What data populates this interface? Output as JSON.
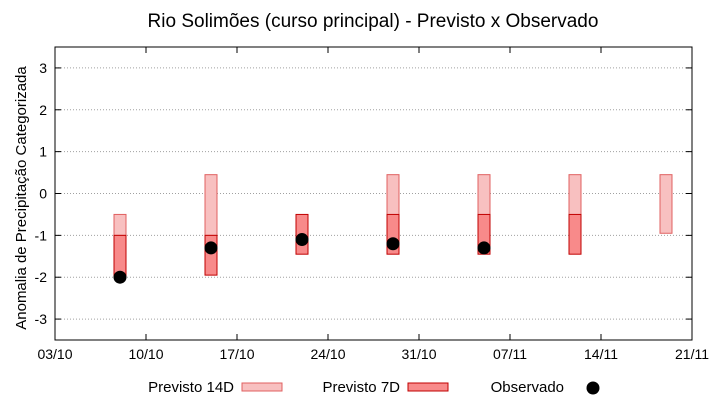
{
  "chart_data": {
    "type": "range-bar",
    "title": "Rio Solimões (curso principal) - Previsto x Observado",
    "ylabel": "Anomalia de Precipitação Categorizada",
    "xlabel": "",
    "ylim": [
      -3.5,
      3.5
    ],
    "yticks": [
      -3,
      -2,
      -1,
      0,
      1,
      2,
      3
    ],
    "xlim": [
      "2024-10-03",
      "2024-11-21"
    ],
    "xticks": [
      {
        "date": "2024-10-03",
        "label": "03/10"
      },
      {
        "date": "2024-10-10",
        "label": "10/10"
      },
      {
        "date": "2024-10-17",
        "label": "17/10"
      },
      {
        "date": "2024-10-24",
        "label": "24/10"
      },
      {
        "date": "2024-10-31",
        "label": "31/10"
      },
      {
        "date": "2024-11-07",
        "label": "07/11"
      },
      {
        "date": "2024-11-14",
        "label": "14/11"
      },
      {
        "date": "2024-11-21",
        "label": "21/11"
      }
    ],
    "grid": "y-dotted",
    "legend_position": "bottom",
    "series": [
      {
        "name": "Previsto 14D",
        "color": "#f8c0c0",
        "edge": "#e06060",
        "points": [
          {
            "x": "2024-10-08",
            "low": -1.0,
            "high": -0.5
          },
          {
            "x": "2024-10-15",
            "low": -1.0,
            "high": 0.45
          },
          {
            "x": "2024-10-29",
            "low": -1.0,
            "high": 0.45
          },
          {
            "x": "2024-11-05",
            "low": -1.0,
            "high": 0.45
          },
          {
            "x": "2024-11-12",
            "low": -1.0,
            "high": 0.45
          },
          {
            "x": "2024-11-19",
            "low": -0.95,
            "high": 0.45
          }
        ]
      },
      {
        "name": "Previsto 7D",
        "color": "#f88a8a",
        "edge": "#c00000",
        "points": [
          {
            "x": "2024-10-08",
            "low": -2.0,
            "high": -1.0
          },
          {
            "x": "2024-10-15",
            "low": -1.95,
            "high": -1.0
          },
          {
            "x": "2024-10-22",
            "low": -1.45,
            "high": -0.5
          },
          {
            "x": "2024-10-29",
            "low": -1.45,
            "high": -0.5
          },
          {
            "x": "2024-11-05",
            "low": -1.45,
            "high": -0.5
          },
          {
            "x": "2024-11-12",
            "low": -1.45,
            "high": -0.5
          }
        ]
      },
      {
        "name": "Observado",
        "color": "#000000",
        "points": [
          {
            "x": "2024-10-08",
            "y": -2.0
          },
          {
            "x": "2024-10-15",
            "y": -1.3
          },
          {
            "x": "2024-10-22",
            "y": -1.1
          },
          {
            "x": "2024-10-29",
            "y": -1.2
          },
          {
            "x": "2024-11-05",
            "y": -1.3
          }
        ]
      }
    ]
  }
}
